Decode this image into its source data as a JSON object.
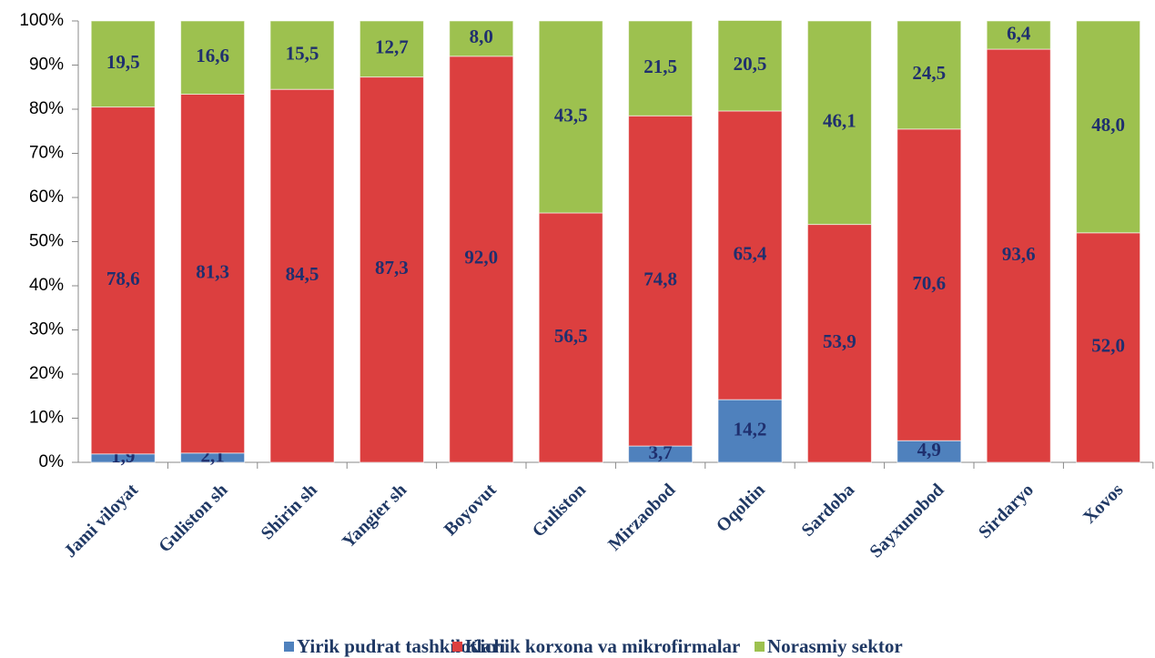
{
  "chart_data": {
    "type": "stacked_bar",
    "categories": [
      "Jami viloyat",
      "Guliston sh",
      "Shirin sh",
      "Yangier sh",
      "Boyovut",
      "Guliston",
      "Mirzaobod",
      "Oqoltin",
      "Sardoba",
      "Sayxunobod",
      "Sirdaryo",
      "Xovos"
    ],
    "series": [
      {
        "name": "Yirik pudrat tashkilotlari",
        "color": "#4f81bd",
        "values": [
          1.9,
          2.1,
          null,
          null,
          null,
          null,
          3.7,
          14.2,
          null,
          4.9,
          null,
          null
        ],
        "value_labels": [
          "1,9",
          "2,1",
          null,
          null,
          null,
          null,
          "3,7",
          "14,2",
          null,
          "4,9",
          null,
          null
        ]
      },
      {
        "name": "Kichik korxona va mikrofirmalar",
        "color": "#dc3f3f",
        "values": [
          78.6,
          81.3,
          84.5,
          87.3,
          92.0,
          56.5,
          74.8,
          65.4,
          53.9,
          70.6,
          93.6,
          52.0
        ],
        "value_labels": [
          "78,6",
          "81,3",
          "84,5",
          "87,3",
          "92,0",
          "56,5",
          "74,8",
          "65,4",
          "53,9",
          "70,6",
          "93,6",
          "52,0"
        ]
      },
      {
        "name": "Norasmiy sektor",
        "color": "#9dc14f",
        "values": [
          19.5,
          16.6,
          15.5,
          12.7,
          8.0,
          43.5,
          21.5,
          20.5,
          46.1,
          24.5,
          6.4,
          48.0
        ],
        "value_labels": [
          "19,5",
          "16,6",
          "15,5",
          "12,7",
          "8,0",
          "43,5",
          "21,5",
          "20,5",
          "46,1",
          "24,5",
          "6,4",
          "48,0"
        ]
      }
    ],
    "ylim": [
      0,
      100
    ],
    "yticks": [
      {
        "value": 0,
        "label": "0%"
      },
      {
        "value": 10,
        "label": "10%"
      },
      {
        "value": 20,
        "label": "20%"
      },
      {
        "value": 30,
        "label": "30%"
      },
      {
        "value": 40,
        "label": "40%"
      },
      {
        "value": 50,
        "label": "50%"
      },
      {
        "value": 60,
        "label": "60%"
      },
      {
        "value": 70,
        "label": "70%"
      },
      {
        "value": 80,
        "label": "80%"
      },
      {
        "value": 90,
        "label": "90%"
      },
      {
        "value": 100,
        "label": "100%"
      }
    ],
    "legend": "bottom"
  }
}
